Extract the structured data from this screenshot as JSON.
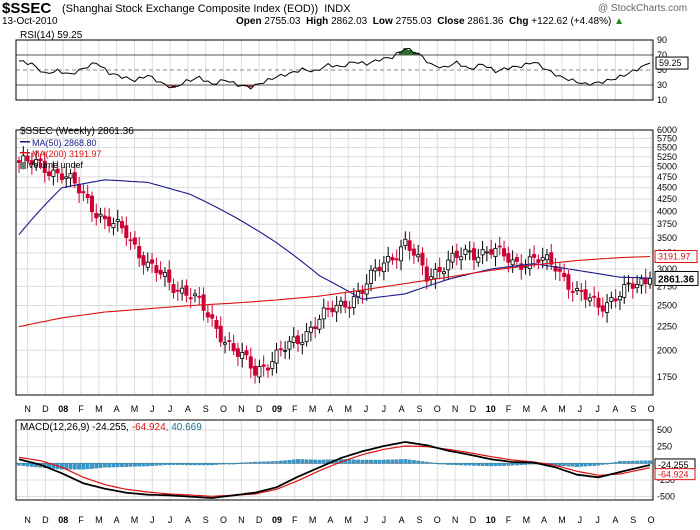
{
  "header": {
    "symbol": "$SSEC",
    "name": "(Shanghai Stock Exchange Composite Index (EOD))",
    "exchange": "INDX",
    "date": "13-Oct-2010",
    "watermark": "@ StockCharts.com",
    "open_label": "Open",
    "open": "2755.03",
    "high_label": "High",
    "high": "2862.03",
    "low_label": "Low",
    "low": "2755.03",
    "close_label": "Close",
    "close": "2861.36",
    "chg_label": "Chg",
    "chg": "+122.62 (+4.48%)",
    "chg_arrow": "▲"
  },
  "colors": {
    "up_candle": "#000000",
    "down_candle": "#cc0033",
    "ma50": "#1a1a8c",
    "ma200": "#dd1111",
    "rsi_line": "#000000",
    "rsi_over": "#2e6b2e",
    "rsi_under": "#8c3a3a",
    "macd_line": "#000000",
    "signal_line": "#dd1111",
    "histogram": "#3399cc",
    "grid": "#dcdcdc"
  },
  "chart_data": [
    {
      "type": "line",
      "panel": "rsi",
      "title": "RSI(14) 59.25",
      "current_label": "59.25",
      "current": 59.25,
      "ylim": [
        10,
        90
      ],
      "yticks": [
        10,
        30,
        50,
        70,
        90
      ],
      "overbought": 70,
      "oversold": 30,
      "x": [
        0,
        3,
        6,
        9,
        12,
        15,
        18,
        21,
        24,
        27,
        30,
        33,
        36,
        39,
        42,
        45,
        48,
        51,
        54,
        57,
        60,
        63,
        66,
        69,
        72,
        75,
        78,
        81,
        84,
        87,
        90,
        93,
        96,
        99,
        102,
        105,
        108,
        111,
        114,
        117,
        120,
        123,
        126,
        129,
        132,
        135,
        138,
        141,
        144,
        147
      ],
      "values": [
        62,
        58,
        45,
        49,
        44,
        52,
        60,
        46,
        41,
        36,
        43,
        33,
        26,
        35,
        40,
        31,
        37,
        30,
        27,
        34,
        41,
        45,
        51,
        48,
        57,
        54,
        61,
        58,
        64,
        67,
        79,
        72,
        57,
        53,
        60,
        51,
        58,
        48,
        53,
        55,
        61,
        50,
        41,
        36,
        31,
        33,
        37,
        43,
        51,
        59.25
      ]
    },
    {
      "type": "candlestick",
      "panel": "price",
      "title": "$SSEC (Weekly) 2861.36",
      "current_label": "2861.36",
      "ma50_label": "MA(50) 2868.80",
      "ma200_label": "MA(200) 3191.97",
      "ma200_current_label": "3191.97",
      "volume_label": "Volume undef",
      "log_scale": true,
      "ylim": [
        1600,
        6000
      ],
      "yticks": [
        1750,
        2000,
        2250,
        2500,
        2750,
        3000,
        3250,
        3500,
        3750,
        4000,
        4250,
        4500,
        4750,
        5000,
        5250,
        5500,
        5750,
        6000
      ],
      "close_anchor_x": [
        0,
        5,
        10,
        15,
        20,
        25,
        30,
        35,
        40,
        45,
        50,
        55,
        60,
        65,
        70,
        75,
        80,
        85,
        90,
        95,
        100,
        105,
        110,
        115,
        120,
        125,
        130,
        135,
        140,
        147
      ],
      "close_anchor_y": [
        5100,
        5050,
        4800,
        4350,
        3800,
        3600,
        3050,
        2800,
        2650,
        2300,
        2000,
        1800,
        1950,
        2100,
        2350,
        2500,
        2700,
        3100,
        3400,
        2900,
        3100,
        3250,
        3300,
        3100,
        3150,
        3050,
        2650,
        2500,
        2650,
        2861
      ],
      "ma50_x": [
        0,
        10,
        20,
        30,
        40,
        50,
        60,
        70,
        80,
        90,
        100,
        110,
        120,
        130,
        140,
        147
      ],
      "ma50_y": [
        3560,
        4500,
        4680,
        4620,
        4350,
        3900,
        3420,
        2900,
        2580,
        2650,
        2850,
        3000,
        3080,
        2980,
        2880,
        2868
      ],
      "ma200_x": [
        0,
        10,
        20,
        30,
        40,
        50,
        60,
        70,
        80,
        90,
        100,
        110,
        120,
        130,
        140,
        147
      ],
      "ma200_y": [
        2250,
        2350,
        2420,
        2460,
        2500,
        2530,
        2570,
        2620,
        2700,
        2790,
        2880,
        2980,
        3060,
        3130,
        3175,
        3191.97
      ]
    },
    {
      "type": "line",
      "panel": "macd",
      "title": "MACD(12,26,9)",
      "macd_label": "-24.255",
      "signal_label": "-64.924",
      "hist_label": "40.669",
      "macd_current_label": "-24.255",
      "signal_current_label": "-64.924",
      "ylim": [
        -550,
        650
      ],
      "yticks": [
        -500,
        -250,
        0,
        250,
        500
      ],
      "x": [
        0,
        5,
        10,
        15,
        20,
        25,
        30,
        35,
        40,
        45,
        50,
        55,
        60,
        65,
        70,
        75,
        80,
        85,
        90,
        95,
        100,
        105,
        110,
        115,
        120,
        125,
        130,
        135,
        140,
        147
      ],
      "macd": [
        60,
        -20,
        -150,
        -300,
        -380,
        -440,
        -470,
        -480,
        -500,
        -520,
        -480,
        -440,
        -360,
        -200,
        -60,
        80,
        180,
        260,
        320,
        270,
        190,
        130,
        60,
        20,
        10,
        -60,
        -170,
        -210,
        -130,
        -24.255
      ],
      "signal": [
        90,
        40,
        -60,
        -210,
        -320,
        -390,
        -430,
        -460,
        -475,
        -495,
        -480,
        -460,
        -390,
        -260,
        -110,
        20,
        130,
        210,
        260,
        250,
        210,
        160,
        100,
        50,
        20,
        -30,
        -120,
        -180,
        -160,
        -64.924
      ],
      "histogram": [
        -30,
        -60,
        -90,
        -90,
        -60,
        -50,
        -40,
        -20,
        -25,
        -25,
        0,
        20,
        30,
        60,
        50,
        60,
        50,
        50,
        60,
        20,
        -20,
        -30,
        -40,
        -30,
        -10,
        -30,
        -50,
        -30,
        30,
        40.669
      ]
    }
  ],
  "x_axis": {
    "labels": [
      "N",
      "D",
      "08",
      "F",
      "M",
      "A",
      "M",
      "J",
      "J",
      "A",
      "S",
      "O",
      "N",
      "D",
      "09",
      "F",
      "M",
      "A",
      "M",
      "J",
      "J",
      "A",
      "S",
      "O",
      "N",
      "D",
      "10",
      "F",
      "M",
      "A",
      "M",
      "J",
      "J",
      "A",
      "S",
      "O"
    ],
    "bold_labels": [
      "08",
      "09",
      "10"
    ]
  }
}
